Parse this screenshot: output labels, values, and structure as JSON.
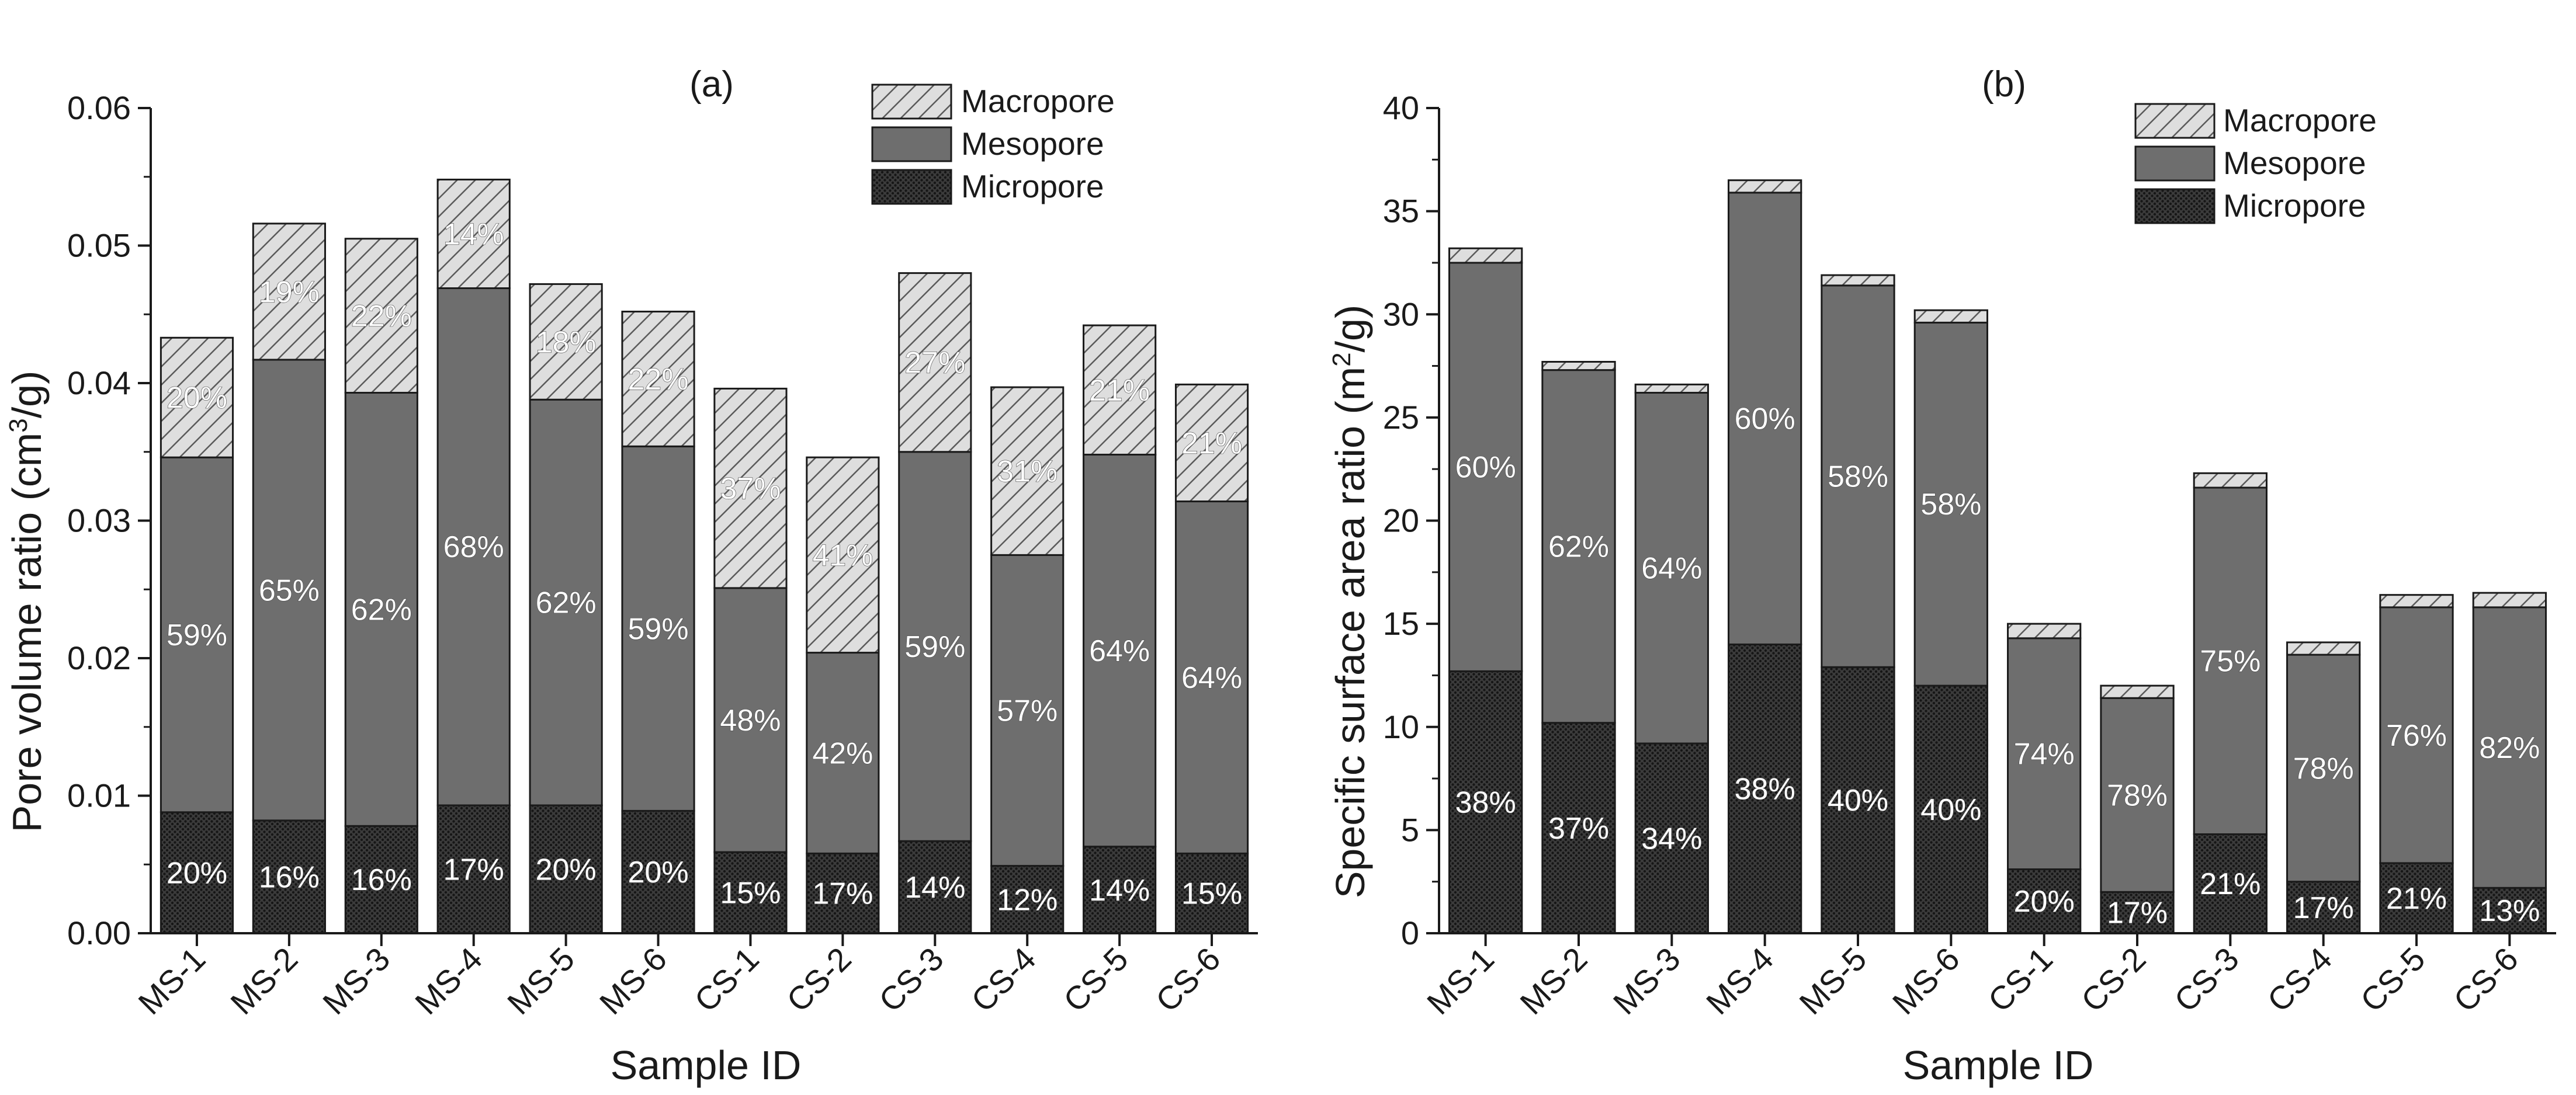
{
  "chart_data": [
    {
      "panel": "(a)",
      "type": "stacked-bar",
      "title": "",
      "xlabel": "Sample ID",
      "ylabel_main": "Pore volume ratio (cm",
      "ylabel_sup": "3",
      "ylabel_tail": "/g)",
      "ylim": [
        0,
        0.06
      ],
      "yticks": [
        0.0,
        0.01,
        0.02,
        0.03,
        0.04,
        0.05,
        0.06
      ],
      "ytick_labels": [
        "0.00",
        "0.01",
        "0.02",
        "0.03",
        "0.04",
        "0.05",
        "0.06"
      ],
      "grid": false,
      "legend_position": "top-right",
      "categories": [
        "MS-1",
        "MS-2",
        "MS-3",
        "MS-4",
        "MS-5",
        "MS-6",
        "CS-1",
        "CS-2",
        "CS-3",
        "CS-4",
        "CS-5",
        "CS-6"
      ],
      "series": [
        {
          "name": "Micropore",
          "values": [
            0.0088,
            0.0082,
            0.0078,
            0.0093,
            0.0093,
            0.0089,
            0.0059,
            0.0058,
            0.0067,
            0.0049,
            0.0063,
            0.0058
          ],
          "labels": [
            "20%",
            "16%",
            "16%",
            "17%",
            "20%",
            "20%",
            "15%",
            "17%",
            "14%",
            "12%",
            "14%",
            "15%"
          ]
        },
        {
          "name": "Mesopore",
          "values": [
            0.0258,
            0.0335,
            0.0315,
            0.0376,
            0.0295,
            0.0265,
            0.0192,
            0.0146,
            0.0283,
            0.0226,
            0.0285,
            0.0256
          ],
          "labels": [
            "59%",
            "65%",
            "62%",
            "68%",
            "62%",
            "59%",
            "48%",
            "42%",
            "59%",
            "57%",
            "64%",
            "64%"
          ]
        },
        {
          "name": "Macropore",
          "values": [
            0.0087,
            0.0099,
            0.0112,
            0.0079,
            0.0084,
            0.0098,
            0.0145,
            0.0142,
            0.013,
            0.0122,
            0.0094,
            0.0085
          ],
          "labels": [
            "20%",
            "19%",
            "22%",
            "14%",
            "18%",
            "22%",
            "37%",
            "41%",
            "27%",
            "31%",
            "21%",
            "21%"
          ]
        }
      ]
    },
    {
      "panel": "(b)",
      "type": "stacked-bar",
      "title": "",
      "xlabel": "Sample ID",
      "ylabel_main": "Specific surface area ratio (m",
      "ylabel_sup": "2",
      "ylabel_tail": "/g)",
      "ylim": [
        0,
        40
      ],
      "yticks": [
        0,
        5,
        10,
        15,
        20,
        25,
        30,
        35,
        40
      ],
      "ytick_labels": [
        "0",
        "5",
        "10",
        "15",
        "20",
        "25",
        "30",
        "35",
        "40"
      ],
      "grid": false,
      "legend_position": "top-right",
      "categories": [
        "MS-1",
        "MS-2",
        "MS-3",
        "MS-4",
        "MS-5",
        "MS-6",
        "CS-1",
        "CS-2",
        "CS-3",
        "CS-4",
        "CS-5",
        "CS-6"
      ],
      "series": [
        {
          "name": "Micropore",
          "values": [
            12.7,
            10.2,
            9.2,
            14.0,
            12.9,
            12.0,
            3.1,
            2.0,
            4.8,
            2.5,
            3.4,
            2.2
          ],
          "labels": [
            "38%",
            "37%",
            "34%",
            "38%",
            "40%",
            "40%",
            "20%",
            "17%",
            "21%",
            "17%",
            "21%",
            "13%"
          ]
        },
        {
          "name": "Mesopore",
          "values": [
            19.8,
            17.1,
            17.0,
            21.9,
            18.5,
            17.6,
            11.2,
            9.4,
            16.8,
            11.0,
            12.4,
            13.6
          ],
          "labels": [
            "60%",
            "62%",
            "64%",
            "60%",
            "58%",
            "58%",
            "74%",
            "78%",
            "75%",
            "78%",
            "76%",
            "82%"
          ]
        },
        {
          "name": "Macropore",
          "values": [
            0.7,
            0.4,
            0.4,
            0.6,
            0.5,
            0.6,
            0.7,
            0.6,
            0.7,
            0.6,
            0.6,
            0.7
          ],
          "labels": [
            "",
            "",
            "",
            "",
            "",
            "",
            "",
            "",
            "",
            "",
            "",
            ""
          ]
        }
      ]
    }
  ],
  "colors": {
    "axis": "#1a1a1a",
    "micropore_base": "#3b3b3b",
    "micropore_dot": "#161616",
    "mesopore": "#6e6e6e",
    "macropore_bg": "#dedede",
    "macropore_hatch": "#5a5a5a",
    "bar_label": "#ffffff",
    "bar_label_outline": "#444444"
  }
}
